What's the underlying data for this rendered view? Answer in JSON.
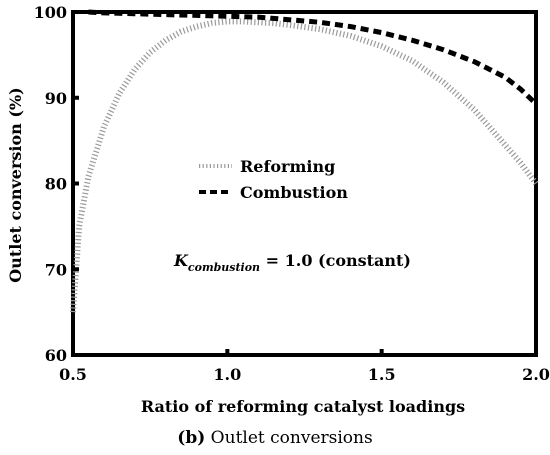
{
  "chart_data": {
    "type": "line",
    "xlabel": "Ratio of reforming catalyst loadings",
    "ylabel": "Outlet conversion (%)",
    "caption_letter": "(b)",
    "caption_text": " Outlet conversions",
    "xlim": [
      0.5,
      2.0
    ],
    "ylim": [
      60,
      100
    ],
    "x_ticks": [
      0.5,
      1.0,
      1.5,
      2.0
    ],
    "x_tick_labels": [
      "0.5",
      "1.0",
      "1.5",
      "2.0"
    ],
    "y_ticks": [
      60,
      70,
      80,
      90,
      100
    ],
    "y_tick_labels": [
      "60",
      "70",
      "80",
      "90",
      "100"
    ],
    "grid": false,
    "legend_position": "center-left",
    "annotation": {
      "k_letter": "K",
      "k_subscript": "combustion",
      "rest": " = 1.0 (constant)"
    },
    "series": [
      {
        "name": "Reforming",
        "style": "dotted-gray",
        "color": "#9a9a9a",
        "x": [
          0.5,
          0.52,
          0.55,
          0.6,
          0.65,
          0.7,
          0.75,
          0.8,
          0.85,
          0.9,
          0.95,
          1.0,
          1.05,
          1.1,
          1.15,
          1.2,
          1.3,
          1.4,
          1.5,
          1.6,
          1.7,
          1.8,
          1.9,
          1.95,
          2.0
        ],
        "y": [
          65.0,
          75.0,
          80.8,
          86.6,
          90.5,
          93.3,
          95.3,
          96.7,
          97.7,
          98.3,
          98.7,
          98.9,
          98.9,
          98.8,
          98.7,
          98.5,
          98.0,
          97.2,
          96.0,
          94.3,
          91.8,
          88.6,
          84.5,
          82.4,
          80.0
        ]
      },
      {
        "name": "Combustion",
        "style": "dashed-black",
        "color": "#000000",
        "x": [
          0.55,
          0.6,
          0.7,
          0.8,
          0.9,
          1.0,
          1.1,
          1.2,
          1.3,
          1.4,
          1.5,
          1.6,
          1.7,
          1.8,
          1.9,
          1.95,
          2.0
        ],
        "y": [
          100.0,
          99.9,
          99.8,
          99.7,
          99.6,
          99.5,
          99.4,
          99.1,
          98.8,
          98.3,
          97.6,
          96.7,
          95.6,
          94.2,
          92.4,
          91.0,
          89.3
        ]
      }
    ]
  }
}
